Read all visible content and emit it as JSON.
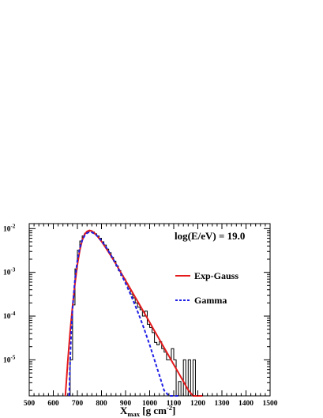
{
  "chart_data": {
    "type": "line",
    "annotation": "log(E/eV) = 19.0",
    "xlabel": "X_max [g cm^-2]",
    "xlabel_parts": {
      "main": "X",
      "sub": "max",
      "units": " [g cm",
      "sup": "-2",
      "close": "]"
    },
    "ylabel": "",
    "xlim": [
      500,
      1500
    ],
    "ylim": [
      1.5e-06,
      0.013
    ],
    "yscale": "log",
    "x_ticks": [
      500,
      600,
      700,
      800,
      900,
      1000,
      1100,
      1200,
      1300,
      1400,
      1500
    ],
    "x_tick_labels": [
      "500",
      "600",
      "700",
      "800",
      "900",
      "1000",
      "1100",
      "1200",
      "1300",
      "1400",
      "1500"
    ],
    "y_ticks": [
      1e-05,
      0.0001,
      0.001,
      0.01
    ],
    "y_tick_labels": [
      {
        "base": "10",
        "exp": "-5"
      },
      {
        "base": "10",
        "exp": "-4"
      },
      {
        "base": "10",
        "exp": "-3"
      },
      {
        "base": "10",
        "exp": "-2"
      }
    ],
    "legend_position": "right",
    "series": [
      {
        "name": "",
        "style": "histogram",
        "color": "#000000",
        "bin_width": 10,
        "bins": [
          [
            670,
            1e-05
          ],
          [
            680,
            0.00018
          ],
          [
            690,
            0.0012
          ],
          [
            700,
            0.0032
          ],
          [
            710,
            0.0052
          ],
          [
            720,
            0.0068
          ],
          [
            730,
            0.0078
          ],
          [
            740,
            0.0086
          ],
          [
            750,
            0.0088
          ],
          [
            760,
            0.0084
          ],
          [
            770,
            0.0076
          ],
          [
            780,
            0.0068
          ],
          [
            790,
            0.006
          ],
          [
            800,
            0.005
          ],
          [
            810,
            0.0042
          ],
          [
            820,
            0.0034
          ],
          [
            830,
            0.0028
          ],
          [
            840,
            0.0022
          ],
          [
            850,
            0.0018
          ],
          [
            860,
            0.0014
          ],
          [
            870,
            0.0011
          ],
          [
            880,
            0.00085
          ],
          [
            890,
            0.0007
          ],
          [
            900,
            0.00055
          ],
          [
            910,
            0.00042
          ],
          [
            920,
            0.00032
          ],
          [
            930,
            0.00026
          ],
          [
            940,
            0.0002
          ],
          [
            950,
            0.00016
          ],
          [
            960,
            0.00014
          ],
          [
            970,
            0.0001
          ],
          [
            980,
            0.00013
          ],
          [
            990,
            6.5e-05
          ],
          [
            1000,
            5.5e-05
          ],
          [
            1010,
            4.2e-05
          ],
          [
            1020,
            2.5e-05
          ],
          [
            1030,
            2.2e-05
          ],
          [
            1040,
            2.6e-05
          ],
          [
            1050,
            1.8e-05
          ],
          [
            1060,
            1.5e-05
          ],
          [
            1070,
            1e-05
          ],
          [
            1080,
            1e-05
          ],
          [
            1090,
            1.8e-05
          ],
          [
            1100,
            1e-05
          ],
          [
            1110,
            1.5e-06
          ],
          [
            1120,
            3.2e-06
          ],
          [
            1130,
            1.5e-06
          ],
          [
            1140,
            1e-05
          ],
          [
            1150,
            1.5e-06
          ],
          [
            1160,
            1e-05
          ],
          [
            1170,
            1.5e-06
          ],
          [
            1180,
            1e-05
          ],
          [
            1190,
            1.5e-06
          ]
        ]
      },
      {
        "name": "Exp-Gauss",
        "style": "solid",
        "color": "#e41a1c",
        "x": [
          650,
          660,
          670,
          680,
          690,
          700,
          710,
          720,
          730,
          740,
          750,
          760,
          770,
          780,
          800,
          820,
          840,
          860,
          880,
          900,
          920,
          940,
          960,
          980,
          1000,
          1020,
          1040,
          1060,
          1080,
          1100,
          1120,
          1140,
          1160,
          1180,
          1200,
          1220
        ],
        "y": [
          1.5e-06,
          9e-06,
          4.5e-05,
          0.00017,
          0.00055,
          0.0015,
          0.0032,
          0.0054,
          0.0074,
          0.0086,
          0.0091,
          0.0088,
          0.008,
          0.007,
          0.0051,
          0.0035,
          0.00235,
          0.00155,
          0.001,
          0.00065,
          0.00042,
          0.00027,
          0.000175,
          0.000112,
          7.2e-05,
          4.6e-05,
          2.95e-05,
          1.9e-05,
          1.22e-05,
          7.8e-06,
          5e-06,
          3.2e-06,
          2.05e-06,
          1.5e-06,
          1.5e-06,
          1.5e-06
        ]
      },
      {
        "name": "Gamma",
        "style": "dashed",
        "color": "#1f1fe6",
        "x": [
          666,
          670,
          675,
          680,
          690,
          700,
          710,
          720,
          730,
          740,
          750,
          760,
          770,
          780,
          800,
          820,
          840,
          860,
          880,
          900,
          920,
          940,
          960,
          980,
          1000,
          1020,
          1040,
          1060,
          1080,
          1100,
          1110,
          1120
        ],
        "y": [
          1.5e-06,
          1e-05,
          5e-05,
          0.00015,
          0.0007,
          0.0019,
          0.0036,
          0.0054,
          0.0069,
          0.0079,
          0.0083,
          0.0082,
          0.0077,
          0.007,
          0.0053,
          0.0037,
          0.00245,
          0.00155,
          0.00095,
          0.00056,
          0.00032,
          0.000175,
          9.2e-05,
          4.6e-05,
          2.2e-05,
          1e-05,
          4.5e-06,
          2e-06,
          1.5e-06,
          1.5e-06,
          1.5e-06,
          1.5e-06
        ]
      }
    ]
  }
}
